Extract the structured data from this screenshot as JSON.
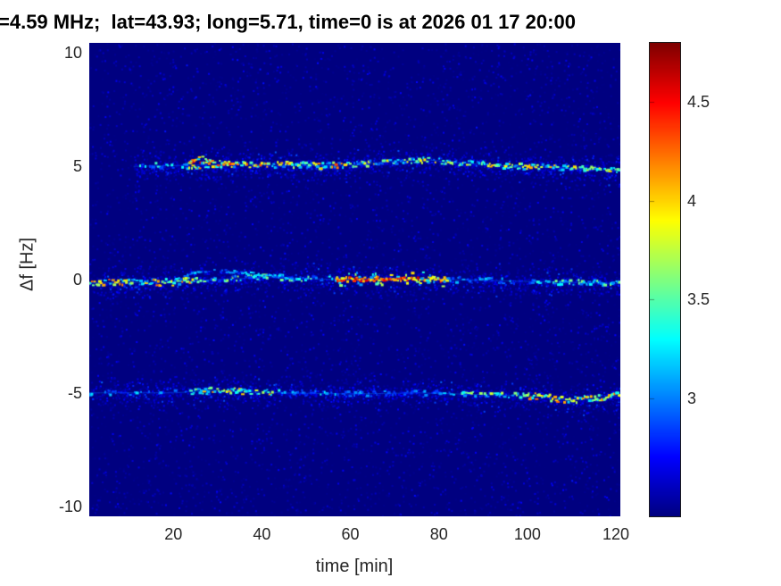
{
  "title": "=4.59 MHz;  lat=43.93; long=5.71, time=0 is at 2026 01 17 20:00",
  "chart_data": {
    "type": "heatmap",
    "title": "=4.59 MHz;  lat=43.93; long=5.71, time=0 is at 2026 01 17 20:00",
    "xlabel": "time [min]",
    "ylabel": "Δf [Hz]",
    "xlim": [
      1,
      121
    ],
    "ylim": [
      -10.45,
      10.45
    ],
    "clim": [
      2.4,
      4.8
    ],
    "xticks": [
      20,
      40,
      60,
      80,
      100,
      120
    ],
    "yticks": [
      10,
      5,
      0,
      -5,
      -10
    ],
    "colorbar_ticks": [
      4.5,
      4,
      3.5,
      3
    ],
    "colormap": "jet",
    "grid": false,
    "legend": "none",
    "background_value": 2.4,
    "traces": [
      {
        "name": "doppler-line-plus5Hz",
        "center_freq_hz": 5,
        "path": [
          [
            11,
            5.0
          ],
          [
            25,
            5.05
          ],
          [
            33,
            5.1
          ],
          [
            45,
            5.05
          ],
          [
            55,
            5.02
          ],
          [
            63,
            5.1
          ],
          [
            72,
            5.25
          ],
          [
            78,
            5.28
          ],
          [
            85,
            5.15
          ],
          [
            95,
            5.02
          ],
          [
            105,
            4.95
          ],
          [
            115,
            4.85
          ],
          [
            121,
            4.8
          ]
        ],
        "segments": [
          [
            11,
            23,
            0.5,
            2.8,
            3.5,
            0.12
          ],
          [
            23,
            34,
            1.0,
            3.0,
            4.6,
            0.16
          ],
          [
            34,
            60,
            0.85,
            2.9,
            4.4,
            0.14
          ],
          [
            60,
            90,
            0.75,
            2.9,
            4.0,
            0.12
          ],
          [
            90,
            113,
            0.8,
            3.0,
            4.2,
            0.12
          ],
          [
            113,
            121,
            0.85,
            3.0,
            4.0,
            0.12
          ]
        ]
      },
      {
        "name": "doppler-line-0Hz",
        "center_freq_hz": 0,
        "path": [
          [
            1,
            -0.15
          ],
          [
            20,
            -0.12
          ],
          [
            30,
            0.0
          ],
          [
            42,
            0.12
          ],
          [
            50,
            0.05
          ],
          [
            57,
            0.0
          ],
          [
            70,
            0.05
          ],
          [
            82,
            0.0
          ],
          [
            90,
            -0.03
          ],
          [
            100,
            -0.08
          ],
          [
            110,
            -0.12
          ],
          [
            121,
            -0.18
          ]
        ],
        "segments": [
          [
            1,
            25,
            0.9,
            2.9,
            4.3,
            0.15
          ],
          [
            25,
            40,
            0.55,
            2.8,
            3.7,
            0.12
          ],
          [
            40,
            57,
            0.5,
            2.8,
            3.7,
            0.12
          ],
          [
            57,
            82,
            1.0,
            3.8,
            4.7,
            0.1
          ],
          [
            57,
            82,
            0.5,
            3.0,
            4.0,
            0.3
          ],
          [
            82,
            105,
            0.45,
            2.8,
            3.4,
            0.12
          ],
          [
            105,
            121,
            0.7,
            2.9,
            3.7,
            0.12
          ]
        ]
      },
      {
        "name": "doppler-line-minus5Hz",
        "center_freq_hz": -5,
        "path": [
          [
            1,
            -5.0
          ],
          [
            20,
            -5.0
          ],
          [
            28,
            -4.9
          ],
          [
            35,
            -4.95
          ],
          [
            45,
            -5.0
          ],
          [
            60,
            -5.05
          ],
          [
            75,
            -5.0
          ],
          [
            85,
            -5.05
          ],
          [
            95,
            -5.1
          ],
          [
            103,
            -5.15
          ],
          [
            108,
            -5.3
          ],
          [
            115,
            -5.28
          ],
          [
            121,
            -5.12
          ]
        ],
        "segments": [
          [
            1,
            24,
            0.3,
            2.8,
            3.3,
            0.1
          ],
          [
            24,
            37,
            0.85,
            3.1,
            4.2,
            0.15
          ],
          [
            37,
            44,
            0.6,
            3.0,
            4.1,
            0.12
          ],
          [
            44,
            60,
            0.45,
            2.8,
            3.4,
            0.1
          ],
          [
            60,
            85,
            0.35,
            2.8,
            3.2,
            0.1
          ],
          [
            85,
            100,
            0.6,
            3.0,
            3.8,
            0.1
          ],
          [
            100,
            121,
            0.9,
            3.2,
            4.3,
            0.14
          ]
        ]
      }
    ],
    "features": [
      {
        "name": "loop-arc-above-plus5",
        "path": [
          [
            23.5,
            5.15
          ],
          [
            26,
            5.4
          ],
          [
            29,
            5.2
          ]
        ],
        "density": 0.9,
        "vmin": 3.2,
        "vmax": 4.5
      },
      {
        "name": "faint-arc-above-0",
        "path": [
          [
            21,
            0.0
          ],
          [
            24,
            0.3
          ],
          [
            29,
            0.42
          ],
          [
            36,
            0.3
          ],
          [
            48,
            0.05
          ]
        ],
        "density": 0.45,
        "vmin": 2.8,
        "vmax": 3.3
      }
    ]
  }
}
